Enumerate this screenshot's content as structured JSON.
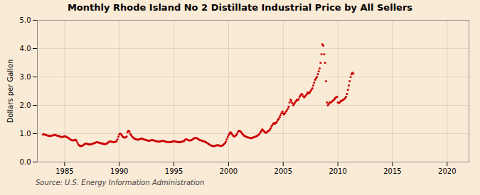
{
  "chart_data": {
    "type": "scatter",
    "title": "Monthly Rhode Island No 2 Distillate Industrial Price by All Sellers",
    "ylabel": "Dollars per Gallon",
    "source": "Source: U.S. Energy Information Administration",
    "color": "#cc0000",
    "grid": true,
    "xlim": [
      1982.5,
      2022
    ],
    "ylim": [
      0.0,
      5.0
    ],
    "xticks": [
      1985,
      1990,
      1995,
      2000,
      2005,
      2010,
      2015,
      2020
    ],
    "yticks": [
      {
        "value": 0.0,
        "label": "0.0"
      },
      {
        "value": 1.0,
        "label": "1.0"
      },
      {
        "value": 2.0,
        "label": "2.0"
      },
      {
        "value": 3.0,
        "label": "3.0"
      },
      {
        "value": 4.0,
        "label": "4.0"
      },
      {
        "value": 5.0,
        "label": "5.0"
      }
    ],
    "x": [
      1983.0,
      1983.08,
      1983.17,
      1983.25,
      1983.33,
      1983.42,
      1983.5,
      1983.58,
      1983.67,
      1983.75,
      1983.83,
      1983.92,
      1984.0,
      1984.08,
      1984.17,
      1984.25,
      1984.33,
      1984.42,
      1984.5,
      1984.58,
      1984.67,
      1984.75,
      1984.83,
      1984.92,
      1985.0,
      1985.08,
      1985.17,
      1985.25,
      1985.33,
      1985.42,
      1985.5,
      1985.58,
      1985.67,
      1985.75,
      1985.83,
      1985.92,
      1986.0,
      1986.08,
      1986.17,
      1986.25,
      1986.33,
      1986.42,
      1986.5,
      1986.58,
      1986.67,
      1986.75,
      1986.83,
      1986.92,
      1987.0,
      1987.08,
      1987.17,
      1987.25,
      1987.33,
      1987.42,
      1987.5,
      1987.58,
      1987.67,
      1987.75,
      1987.83,
      1987.92,
      1988.0,
      1988.08,
      1988.17,
      1988.25,
      1988.33,
      1988.42,
      1988.5,
      1988.58,
      1988.67,
      1988.75,
      1988.83,
      1988.92,
      1989.0,
      1989.08,
      1989.17,
      1989.25,
      1989.33,
      1989.42,
      1989.5,
      1989.58,
      1989.67,
      1989.75,
      1989.83,
      1989.92,
      1990.0,
      1990.08,
      1990.17,
      1990.25,
      1990.33,
      1990.42,
      1990.5,
      1990.58,
      1990.67,
      1990.75,
      1990.83,
      1990.92,
      1991.0,
      1991.08,
      1991.17,
      1991.25,
      1991.33,
      1991.42,
      1991.5,
      1991.58,
      1991.67,
      1991.75,
      1991.83,
      1991.92,
      1992.0,
      1992.08,
      1992.17,
      1992.25,
      1992.33,
      1992.42,
      1992.5,
      1992.58,
      1992.67,
      1992.75,
      1992.83,
      1992.92,
      1993.0,
      1993.08,
      1993.17,
      1993.25,
      1993.33,
      1993.42,
      1993.5,
      1993.58,
      1993.67,
      1993.75,
      1993.83,
      1993.92,
      1994.0,
      1994.08,
      1994.17,
      1994.25,
      1994.33,
      1994.42,
      1994.5,
      1994.58,
      1994.67,
      1994.75,
      1994.83,
      1994.92,
      1995.0,
      1995.08,
      1995.17,
      1995.25,
      1995.33,
      1995.42,
      1995.5,
      1995.58,
      1995.67,
      1995.75,
      1995.83,
      1995.92,
      1996.0,
      1996.08,
      1996.17,
      1996.25,
      1996.33,
      1996.42,
      1996.5,
      1996.58,
      1996.67,
      1996.75,
      1996.83,
      1996.92,
      1997.0,
      1997.08,
      1997.17,
      1997.25,
      1997.33,
      1997.42,
      1997.5,
      1997.58,
      1997.67,
      1997.75,
      1997.83,
      1997.92,
      1998.0,
      1998.08,
      1998.17,
      1998.25,
      1998.33,
      1998.42,
      1998.5,
      1998.58,
      1998.67,
      1998.75,
      1998.83,
      1998.92,
      1999.0,
      1999.08,
      1999.17,
      1999.25,
      1999.33,
      1999.42,
      1999.5,
      1999.58,
      1999.67,
      1999.75,
      1999.83,
      1999.92,
      2000.0,
      2000.08,
      2000.17,
      2000.25,
      2000.33,
      2000.42,
      2000.5,
      2000.58,
      2000.67,
      2000.75,
      2000.83,
      2000.92,
      2001.0,
      2001.08,
      2001.17,
      2001.25,
      2001.33,
      2001.42,
      2001.5,
      2001.58,
      2001.67,
      2001.75,
      2001.83,
      2001.92,
      2002.0,
      2002.08,
      2002.17,
      2002.25,
      2002.33,
      2002.42,
      2002.5,
      2002.58,
      2002.67,
      2002.75,
      2002.83,
      2002.92,
      2003.0,
      2003.08,
      2003.17,
      2003.25,
      2003.33,
      2003.42,
      2003.5,
      2003.58,
      2003.67,
      2003.75,
      2003.83,
      2003.92,
      2004.0,
      2004.08,
      2004.17,
      2004.25,
      2004.33,
      2004.42,
      2004.5,
      2004.58,
      2004.67,
      2004.75,
      2004.83,
      2004.92,
      2005.0,
      2005.08,
      2005.17,
      2005.25,
      2005.33,
      2005.42,
      2005.5,
      2005.58,
      2005.67,
      2005.75,
      2005.83,
      2005.92,
      2006.0,
      2006.08,
      2006.17,
      2006.25,
      2006.33,
      2006.42,
      2006.5,
      2006.58,
      2006.67,
      2006.75,
      2006.83,
      2006.92,
      2007.0,
      2007.08,
      2007.17,
      2007.25,
      2007.33,
      2007.42,
      2007.5,
      2007.58,
      2007.67,
      2007.75,
      2007.83,
      2007.92,
      2008.0,
      2008.08,
      2008.17,
      2008.25,
      2008.33,
      2008.42,
      2008.5,
      2008.58,
      2008.67,
      2008.75,
      2008.83,
      2008.92,
      2009.0,
      2009.08,
      2009.17,
      2009.25,
      2009.33,
      2009.42,
      2009.5,
      2009.58,
      2009.67,
      2009.75,
      2009.83,
      2009.92,
      2010.0,
      2010.08,
      2010.17,
      2010.25,
      2010.33,
      2010.42,
      2010.5,
      2010.58,
      2010.67,
      2010.75,
      2010.83,
      2010.92,
      2011.0,
      2011.08,
      2011.17,
      2011.25,
      2011.33,
      2011.42
    ],
    "values": [
      0.97,
      0.98,
      0.97,
      0.96,
      0.95,
      0.94,
      0.93,
      0.92,
      0.92,
      0.93,
      0.93,
      0.94,
      0.95,
      0.96,
      0.95,
      0.94,
      0.93,
      0.92,
      0.91,
      0.9,
      0.89,
      0.88,
      0.89,
      0.9,
      0.91,
      0.9,
      0.89,
      0.87,
      0.85,
      0.83,
      0.8,
      0.78,
      0.77,
      0.76,
      0.77,
      0.78,
      0.79,
      0.75,
      0.68,
      0.62,
      0.59,
      0.57,
      0.56,
      0.57,
      0.59,
      0.61,
      0.63,
      0.65,
      0.65,
      0.64,
      0.63,
      0.62,
      0.62,
      0.63,
      0.64,
      0.65,
      0.66,
      0.67,
      0.69,
      0.7,
      0.7,
      0.69,
      0.68,
      0.67,
      0.66,
      0.65,
      0.65,
      0.64,
      0.63,
      0.64,
      0.65,
      0.66,
      0.7,
      0.72,
      0.73,
      0.72,
      0.71,
      0.7,
      0.7,
      0.71,
      0.72,
      0.74,
      0.8,
      0.9,
      0.98,
      1.0,
      0.98,
      0.93,
      0.89,
      0.87,
      0.86,
      0.87,
      0.9,
      1.05,
      1.1,
      1.08,
      1.0,
      0.95,
      0.9,
      0.87,
      0.84,
      0.82,
      0.81,
      0.8,
      0.79,
      0.79,
      0.8,
      0.82,
      0.83,
      0.82,
      0.81,
      0.8,
      0.79,
      0.78,
      0.77,
      0.76,
      0.75,
      0.75,
      0.76,
      0.77,
      0.78,
      0.77,
      0.76,
      0.75,
      0.74,
      0.73,
      0.73,
      0.72,
      0.72,
      0.73,
      0.74,
      0.75,
      0.75,
      0.74,
      0.73,
      0.72,
      0.71,
      0.7,
      0.7,
      0.7,
      0.7,
      0.71,
      0.72,
      0.73,
      0.74,
      0.73,
      0.72,
      0.71,
      0.71,
      0.7,
      0.7,
      0.7,
      0.71,
      0.72,
      0.73,
      0.74,
      0.78,
      0.8,
      0.8,
      0.78,
      0.77,
      0.76,
      0.76,
      0.77,
      0.79,
      0.81,
      0.83,
      0.85,
      0.85,
      0.84,
      0.83,
      0.8,
      0.78,
      0.77,
      0.76,
      0.75,
      0.74,
      0.73,
      0.72,
      0.7,
      0.68,
      0.66,
      0.64,
      0.62,
      0.6,
      0.58,
      0.57,
      0.56,
      0.56,
      0.57,
      0.58,
      0.59,
      0.6,
      0.59,
      0.58,
      0.57,
      0.57,
      0.58,
      0.6,
      0.63,
      0.67,
      0.72,
      0.8,
      0.88,
      0.95,
      1.0,
      1.05,
      1.02,
      0.98,
      0.93,
      0.9,
      0.92,
      0.94,
      0.98,
      1.05,
      1.1,
      1.1,
      1.08,
      1.05,
      1.0,
      0.97,
      0.93,
      0.91,
      0.9,
      0.88,
      0.87,
      0.86,
      0.85,
      0.85,
      0.84,
      0.85,
      0.87,
      0.88,
      0.89,
      0.9,
      0.92,
      0.94,
      0.96,
      1.0,
      1.05,
      1.1,
      1.15,
      1.12,
      1.08,
      1.05,
      1.03,
      1.05,
      1.08,
      1.1,
      1.13,
      1.18,
      1.25,
      1.3,
      1.35,
      1.38,
      1.35,
      1.38,
      1.42,
      1.48,
      1.52,
      1.58,
      1.65,
      1.72,
      1.78,
      1.72,
      1.68,
      1.72,
      1.78,
      1.82,
      1.88,
      1.95,
      2.1,
      2.2,
      2.15,
      2.08,
      2.0,
      2.05,
      2.1,
      2.15,
      2.2,
      2.18,
      2.22,
      2.3,
      2.35,
      2.4,
      2.38,
      2.32,
      2.28,
      2.32,
      2.35,
      2.4,
      2.45,
      2.42,
      2.45,
      2.5,
      2.55,
      2.6,
      2.7,
      2.8,
      2.9,
      2.95,
      3.0,
      3.1,
      3.2,
      3.3,
      3.5,
      3.8,
      4.15,
      4.1,
      3.8,
      3.5,
      2.85,
      2.1,
      2.0,
      2.05,
      2.1,
      2.1,
      2.12,
      2.15,
      2.18,
      2.2,
      2.25,
      2.28,
      2.3,
      2.1,
      2.08,
      2.1,
      2.15,
      2.15,
      2.18,
      2.2,
      2.22,
      2.25,
      2.3,
      2.4,
      2.55,
      2.7,
      2.85,
      3.0,
      3.1,
      3.15,
      3.12
    ]
  }
}
